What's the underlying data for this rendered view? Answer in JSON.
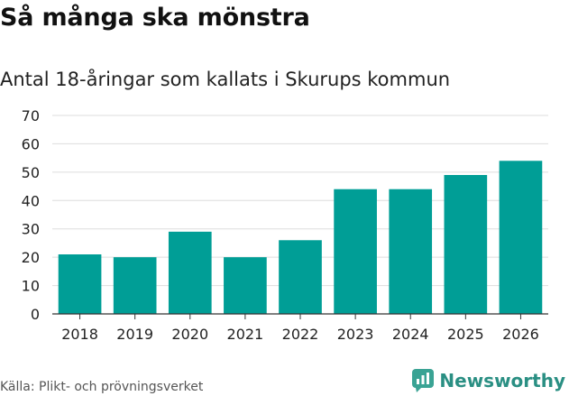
{
  "title": "Så många ska mönstra",
  "subtitle": "Antal 18-åringar som kallats i Skurups kommun",
  "source": "Källa: Plikt- och prövningsverket",
  "brand": {
    "name": "Newsworthy",
    "color": "#2a8f83"
  },
  "chart_data": {
    "type": "bar",
    "categories": [
      "2018",
      "2019",
      "2020",
      "2021",
      "2022",
      "2023",
      "2024",
      "2025",
      "2026"
    ],
    "values": [
      21,
      20,
      29,
      20,
      26,
      44,
      44,
      49,
      54
    ],
    "ylim": [
      0,
      70
    ],
    "yticks": [
      "0",
      "10",
      "20",
      "30",
      "40",
      "50",
      "60",
      "70"
    ],
    "xlabel": "",
    "ylabel": "",
    "grid": true,
    "bar_color": "#009e96"
  }
}
